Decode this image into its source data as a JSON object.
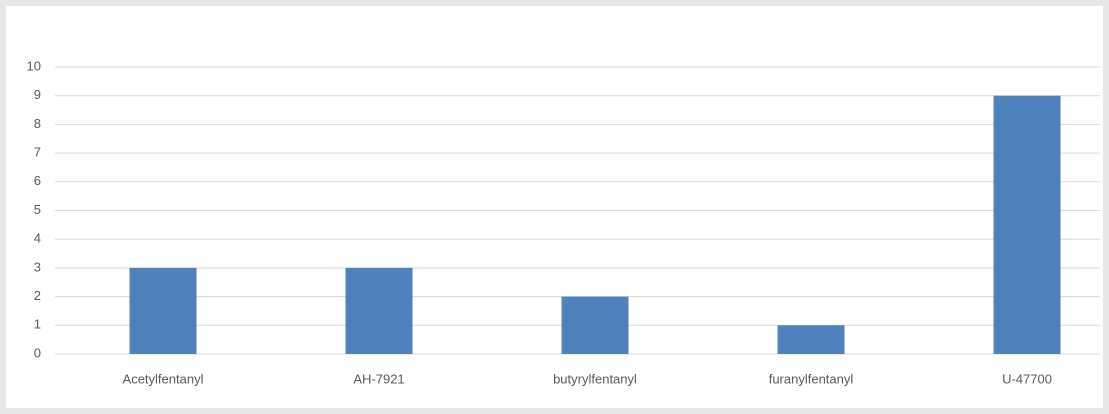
{
  "chart_data": {
    "type": "bar",
    "categories": [
      "Acetylfentanyl",
      "AH-7921",
      "butyrylfentanyl",
      "furanylfentanyl",
      "U-47700"
    ],
    "values": [
      3,
      3,
      2,
      1,
      9
    ],
    "color": "#4f81bd",
    "ylim": [
      0,
      10
    ],
    "yticks": [
      0,
      1,
      2,
      3,
      4,
      5,
      6,
      7,
      8,
      9,
      10
    ],
    "grid": true
  }
}
